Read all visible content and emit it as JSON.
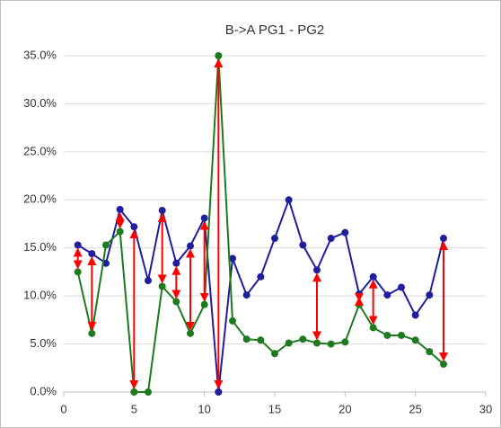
{
  "chart_data": {
    "type": "line",
    "title": "B->A PG1 - PG2",
    "x": [
      1,
      2,
      3,
      4,
      5,
      6,
      7,
      8,
      9,
      10,
      11,
      12,
      13,
      14,
      15,
      16,
      17,
      18,
      19,
      20,
      21,
      22,
      23,
      24,
      25,
      26,
      27
    ],
    "series": [
      {
        "name": "PG1",
        "color": "#1f1f9e",
        "values": [
          15.3,
          14.4,
          13.4,
          19.0,
          17.2,
          11.6,
          18.9,
          13.4,
          15.2,
          18.1,
          0,
          13.9,
          10.1,
          12.0,
          16.0,
          20.0,
          15.3,
          12.7,
          16.0,
          16.6,
          10.2,
          12.0,
          10.1,
          10.9,
          8.0,
          10.1,
          16.0
        ]
      },
      {
        "name": "PG2",
        "color": "#1e7a1e",
        "values": [
          12.5,
          6.1,
          15.3,
          16.7,
          0,
          0,
          11.0,
          9.4,
          6.1,
          9.1,
          35.0,
          7.4,
          5.5,
          5.4,
          4.0,
          5.1,
          5.5,
          5.1,
          5.0,
          5.2,
          9.1,
          6.7,
          5.9,
          5.9,
          5.4,
          4.2,
          2.9
        ]
      }
    ],
    "arrow_x": [
      1,
      2,
      4,
      5,
      7,
      8,
      9,
      10,
      11,
      18,
      21,
      22,
      27
    ],
    "arrow_color": "#ff0000",
    "xlim": [
      0,
      30
    ],
    "xticks": [
      0,
      5,
      10,
      15,
      20,
      25,
      30
    ],
    "ylim": [
      0,
      35
    ],
    "yticks": [
      {
        "value": 0,
        "label": "0.0%"
      },
      {
        "value": 5,
        "label": "5.0%"
      },
      {
        "value": 10,
        "label": "10.0%"
      },
      {
        "value": 15,
        "label": "15.0%"
      },
      {
        "value": 20,
        "label": "20.0%"
      },
      {
        "value": 25,
        "label": "25.0%"
      },
      {
        "value": 30,
        "label": "30.0%"
      },
      {
        "value": 35,
        "label": "35.0%"
      }
    ],
    "grid": true
  }
}
